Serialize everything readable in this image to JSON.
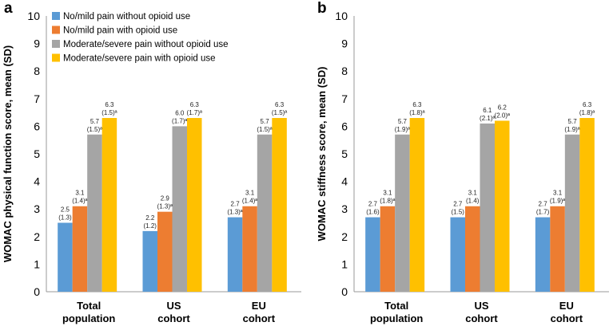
{
  "chart_data": [
    {
      "panel": "a",
      "type": "bar",
      "ylabel": "WOMAC physical function score, mean (SD)",
      "ylim": [
        0,
        10
      ],
      "yticks": [
        0,
        1,
        2,
        3,
        4,
        5,
        6,
        7,
        8,
        9,
        10
      ],
      "categories": [
        [
          "Total",
          "population"
        ],
        [
          "US",
          "cohort"
        ],
        [
          "EU",
          "cohort"
        ]
      ],
      "legend_position": "top-left",
      "series": [
        {
          "name": "No/mild pain without opioid use",
          "color": "#5b9bd5",
          "values": [
            2.5,
            2.2,
            2.7
          ],
          "labels": [
            [
              "2.5",
              "(1.3)"
            ],
            [
              "2.2",
              "(1.2)"
            ],
            [
              "2.7",
              "(1.3)ª"
            ]
          ]
        },
        {
          "name": "No/mild pain with opioid use",
          "color": "#ed7d31",
          "values": [
            3.1,
            2.9,
            3.1
          ],
          "labels": [
            [
              "3.1",
              "(1.4)ª"
            ],
            [
              "2.9",
              "(1.3)ª"
            ],
            [
              "3.1",
              "(1.4)ª"
            ]
          ]
        },
        {
          "name": "Moderate/severe pain without opioid use",
          "color": "#a5a5a5",
          "values": [
            5.7,
            6.0,
            5.7
          ],
          "labels": [
            [
              "5.7",
              "(1.5)ª"
            ],
            [
              "6.0",
              "(1.7)ª"
            ],
            [
              "5.7",
              "(1.5)ª"
            ]
          ]
        },
        {
          "name": "Moderate/severe pain with opioid use",
          "color": "#ffc000",
          "values": [
            6.3,
            6.3,
            6.3
          ],
          "labels": [
            [
              "6.3",
              "(1.5)ª"
            ],
            [
              "6.3",
              "(1.7)ª"
            ],
            [
              "6.3",
              "(1.5)ª"
            ]
          ]
        }
      ]
    },
    {
      "panel": "b",
      "type": "bar",
      "ylabel": "WOMAC stiffness score, mean (SD)",
      "ylim": [
        0,
        10
      ],
      "yticks": [
        0,
        1,
        2,
        3,
        4,
        5,
        6,
        7,
        8,
        9,
        10
      ],
      "categories": [
        [
          "Total",
          "population"
        ],
        [
          "US",
          "cohort"
        ],
        [
          "EU",
          "cohort"
        ]
      ],
      "series": [
        {
          "name": "No/mild pain without opioid use",
          "color": "#5b9bd5",
          "values": [
            2.7,
            2.7,
            2.7
          ],
          "labels": [
            [
              "2.7",
              "(1.6)"
            ],
            [
              "2.7",
              "(1.5)"
            ],
            [
              "2.7",
              "(1.7)"
            ]
          ]
        },
        {
          "name": "No/mild pain with opioid use",
          "color": "#ed7d31",
          "values": [
            3.1,
            3.1,
            3.1
          ],
          "labels": [
            [
              "3.1",
              "(1.8)ª"
            ],
            [
              "3.1",
              "(1.4)"
            ],
            [
              "3.1",
              "(1.9)ª"
            ]
          ]
        },
        {
          "name": "Moderate/severe pain without opioid use",
          "color": "#a5a5a5",
          "values": [
            5.7,
            6.1,
            5.7
          ],
          "labels": [
            [
              "5.7",
              "(1.9)ª"
            ],
            [
              "6.1",
              "(2.1)ª"
            ],
            [
              "5.7",
              "(1.9)ª"
            ]
          ]
        },
        {
          "name": "Moderate/severe pain with opioid use",
          "color": "#ffc000",
          "values": [
            6.3,
            6.2,
            6.3
          ],
          "labels": [
            [
              "6.3",
              "(1.8)ª"
            ],
            [
              "6.2",
              "(2.0)ª"
            ],
            [
              "6.3",
              "(1.8)ª"
            ]
          ]
        }
      ]
    }
  ]
}
